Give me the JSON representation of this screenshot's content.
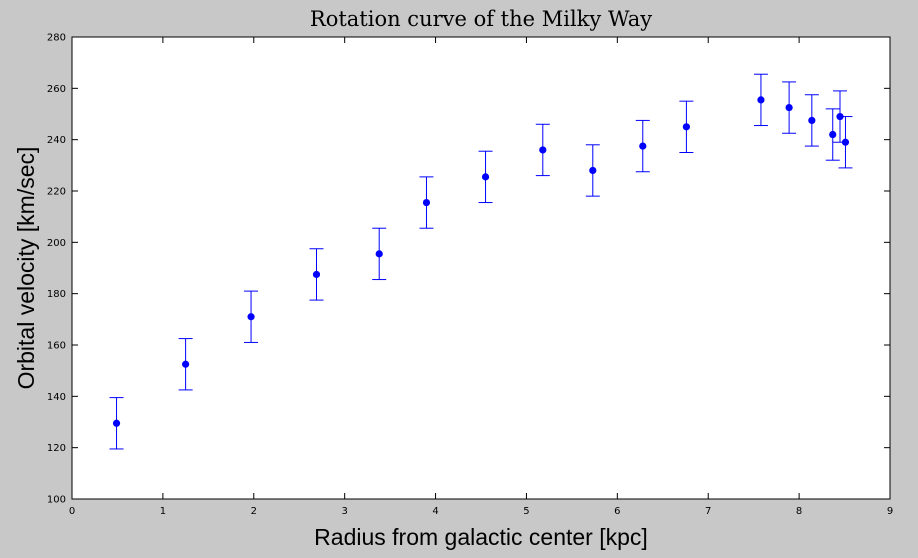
{
  "chart_data": {
    "type": "scatter",
    "title": "Rotation curve of the Milky Way",
    "xlabel": "Radius from galactic center [kpc]",
    "ylabel": "Orbital velocity [km/sec]",
    "xlim": [
      0,
      9
    ],
    "ylim": [
      100,
      280
    ],
    "xticks": [
      "0",
      "1",
      "2",
      "3",
      "4",
      "5",
      "6",
      "7",
      "8",
      "9"
    ],
    "yticks": [
      "100",
      "120",
      "140",
      "160",
      "180",
      "200",
      "220",
      "240",
      "260",
      "280"
    ],
    "grid": false,
    "error_bar": 10,
    "marker_color": "#0000ff",
    "points": [
      {
        "x": 0.49,
        "y": 129.5
      },
      {
        "x": 1.25,
        "y": 152.5
      },
      {
        "x": 1.97,
        "y": 171
      },
      {
        "x": 2.69,
        "y": 187.5
      },
      {
        "x": 3.38,
        "y": 195.5
      },
      {
        "x": 3.9,
        "y": 215.5
      },
      {
        "x": 4.55,
        "y": 225.5
      },
      {
        "x": 5.18,
        "y": 236
      },
      {
        "x": 5.73,
        "y": 228
      },
      {
        "x": 6.28,
        "y": 237.5
      },
      {
        "x": 6.76,
        "y": 245
      },
      {
        "x": 7.58,
        "y": 255.5
      },
      {
        "x": 7.89,
        "y": 252.5
      },
      {
        "x": 8.14,
        "y": 247.5
      },
      {
        "x": 8.37,
        "y": 242
      },
      {
        "x": 8.45,
        "y": 249
      },
      {
        "x": 8.51,
        "y": 239
      }
    ]
  }
}
